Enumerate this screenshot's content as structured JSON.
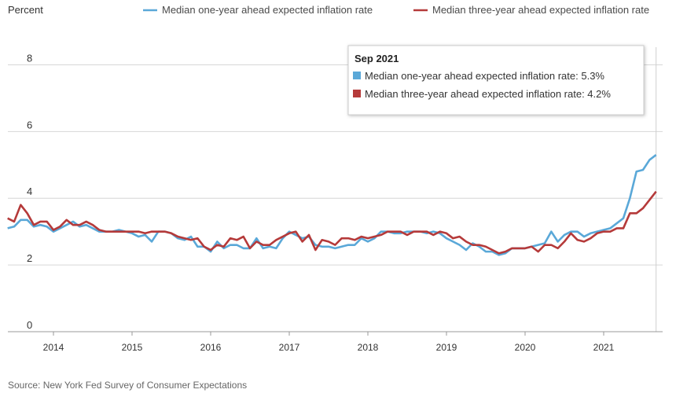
{
  "chart_data": {
    "type": "line",
    "ylabel": "Percent",
    "ylim": [
      0,
      9
    ],
    "yticks": [
      0,
      2,
      4,
      6,
      8
    ],
    "xlim": [
      2013.42,
      2021.75
    ],
    "xticks": [
      "2014",
      "2015",
      "2016",
      "2017",
      "2018",
      "2019",
      "2020",
      "2021"
    ],
    "grid": "horizontal",
    "legend_position": "top",
    "colors": {
      "one_year": "#5aa8d8",
      "three_year": "#b53a3a"
    },
    "series": [
      {
        "name": "Median one-year ahead expected inflation rate",
        "color": "#5aa8d8",
        "start": "2013-06",
        "values": [
          3.1,
          3.15,
          3.35,
          3.35,
          3.15,
          3.2,
          3.15,
          3.0,
          3.1,
          3.2,
          3.3,
          3.15,
          3.2,
          3.1,
          3.0,
          3.0,
          3.0,
          3.05,
          3.0,
          2.95,
          2.85,
          2.9,
          2.7,
          3.0,
          3.0,
          2.95,
          2.8,
          2.75,
          2.85,
          2.55,
          2.55,
          2.4,
          2.7,
          2.5,
          2.6,
          2.6,
          2.5,
          2.5,
          2.8,
          2.5,
          2.55,
          2.5,
          2.8,
          3.0,
          2.9,
          2.8,
          2.85,
          2.6,
          2.55,
          2.55,
          2.5,
          2.55,
          2.6,
          2.6,
          2.8,
          2.7,
          2.8,
          3.0,
          3.0,
          2.95,
          2.95,
          3.0,
          3.0,
          3.0,
          2.95,
          3.0,
          2.95,
          2.8,
          2.7,
          2.6,
          2.45,
          2.65,
          2.55,
          2.4,
          2.4,
          2.3,
          2.35,
          2.5,
          2.5,
          2.5,
          2.55,
          2.6,
          2.65,
          3.0,
          2.7,
          2.9,
          3.0,
          3.0,
          2.85,
          2.95,
          3.0,
          3.05,
          3.1,
          3.25,
          3.4,
          4.0,
          4.8,
          4.85,
          5.15,
          5.3
        ]
      },
      {
        "name": "Median three-year ahead expected inflation rate",
        "color": "#b53a3a",
        "start": "2013-06",
        "values": [
          3.4,
          3.3,
          3.8,
          3.55,
          3.2,
          3.3,
          3.3,
          3.05,
          3.15,
          3.35,
          3.2,
          3.2,
          3.3,
          3.2,
          3.05,
          3.0,
          3.0,
          3.0,
          3.0,
          3.0,
          3.0,
          2.95,
          3.0,
          3.0,
          3.0,
          2.95,
          2.85,
          2.8,
          2.75,
          2.8,
          2.55,
          2.45,
          2.6,
          2.55,
          2.8,
          2.75,
          2.85,
          2.5,
          2.7,
          2.6,
          2.6,
          2.75,
          2.85,
          2.95,
          3.0,
          2.7,
          2.9,
          2.45,
          2.75,
          2.7,
          2.6,
          2.8,
          2.8,
          2.75,
          2.85,
          2.8,
          2.85,
          2.9,
          3.0,
          3.0,
          3.0,
          2.9,
          3.0,
          3.0,
          3.0,
          2.9,
          3.0,
          2.95,
          2.8,
          2.85,
          2.7,
          2.6,
          2.6,
          2.55,
          2.45,
          2.35,
          2.4,
          2.5,
          2.5,
          2.5,
          2.55,
          2.4,
          2.6,
          2.6,
          2.5,
          2.7,
          2.95,
          2.75,
          2.7,
          2.8,
          2.95,
          3.0,
          3.0,
          3.1,
          3.1,
          3.55,
          3.55,
          3.7,
          3.95,
          4.2
        ]
      }
    ],
    "tooltip": {
      "title": "Sep 2021",
      "rows": [
        {
          "label": "Median one-year ahead expected inflation rate: 5.3%",
          "color": "#5aa8d8"
        },
        {
          "label": "Median three-year ahead expected inflation rate: 4.2%",
          "color": "#b53a3a"
        }
      ]
    },
    "source": "Source: New York Fed Survey of Consumer Expectations"
  }
}
